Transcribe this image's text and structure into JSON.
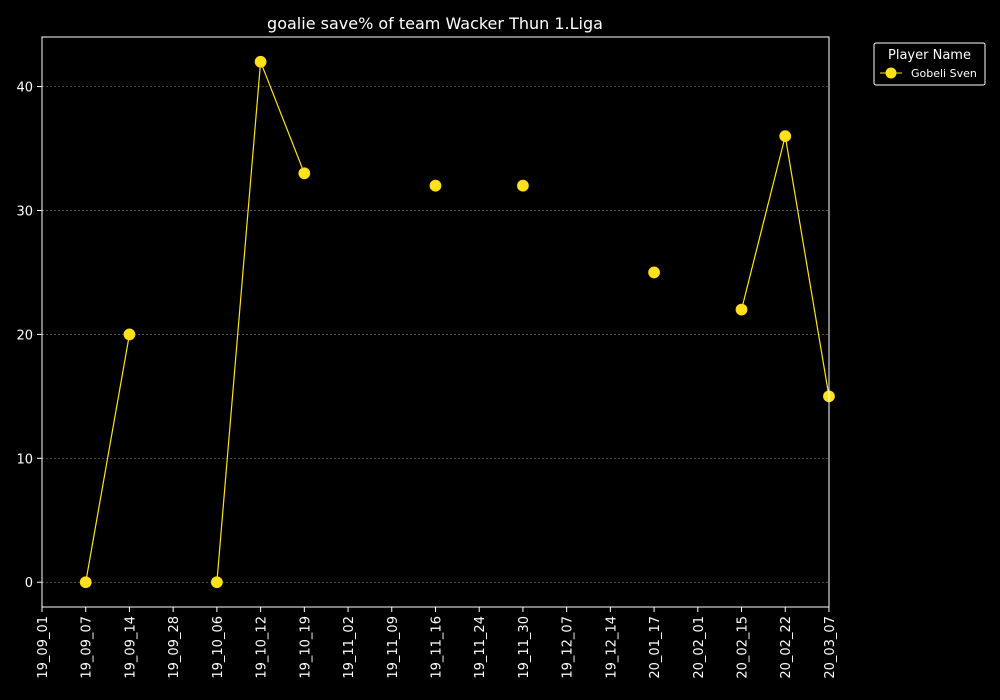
{
  "chart_data": {
    "type": "line",
    "title": "goalie save% of team Wacker Thun 1.Liga",
    "xlabel": "",
    "ylabel": "",
    "ylim": [
      -2,
      44
    ],
    "yticks": [
      0,
      10,
      20,
      30,
      40
    ],
    "grid": true,
    "legend": {
      "title": "Player Name",
      "placement": "top-right outside"
    },
    "categories": [
      "19_09_01",
      "19_09_07",
      "19_09_14",
      "19_09_28",
      "19_10_06",
      "19_10_12",
      "19_10_19",
      "19_11_02",
      "19_11_09",
      "19_11_16",
      "19_11_24",
      "19_11_30",
      "19_12_07",
      "19_12_14",
      "20_01_17",
      "20_02_01",
      "20_02_15",
      "20_02_22",
      "20_03_07"
    ],
    "series": [
      {
        "name": "Gobeli Sven",
        "color": "#ffe31a",
        "values": [
          null,
          0,
          20,
          null,
          0,
          42,
          33,
          null,
          null,
          32,
          null,
          32,
          null,
          null,
          25,
          null,
          22,
          36,
          15
        ]
      }
    ]
  }
}
